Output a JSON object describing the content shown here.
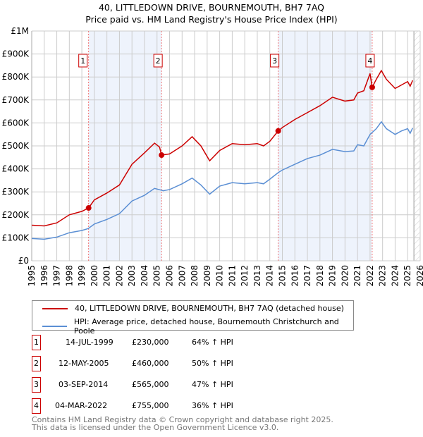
{
  "chart_data": {
    "type": "line",
    "title": "40, LITTLEDOWN DRIVE, BOURNEMOUTH, BH7 7AQ",
    "subtitle": "Price paid vs. HM Land Registry's House Price Index (HPI)",
    "xlim": [
      1995,
      2026
    ],
    "ylim": [
      0,
      1000000
    ],
    "grid": true,
    "y_ticks": [
      {
        "v": 0,
        "l": "£0"
      },
      {
        "v": 100000,
        "l": "£100K"
      },
      {
        "v": 200000,
        "l": "£200K"
      },
      {
        "v": 300000,
        "l": "£300K"
      },
      {
        "v": 400000,
        "l": "£400K"
      },
      {
        "v": 500000,
        "l": "£500K"
      },
      {
        "v": 600000,
        "l": "£600K"
      },
      {
        "v": 700000,
        "l": "£700K"
      },
      {
        "v": 800000,
        "l": "£800K"
      },
      {
        "v": 900000,
        "l": "£900K"
      },
      {
        "v": 1000000,
        "l": "£1M"
      }
    ],
    "x_ticks": [
      "1995",
      "1996",
      "1997",
      "1998",
      "1999",
      "2000",
      "2001",
      "2002",
      "2003",
      "2004",
      "2005",
      "2006",
      "2007",
      "2008",
      "2009",
      "2010",
      "2011",
      "2012",
      "2013",
      "2014",
      "2015",
      "2016",
      "2017",
      "2018",
      "2019",
      "2020",
      "2021",
      "2022",
      "2023",
      "2024",
      "2025",
      "2026"
    ],
    "shaded_periods": [
      [
        1999.54,
        2005.36
      ],
      [
        2014.67,
        2022.17
      ]
    ],
    "forecast_start": 2025.5,
    "series": [
      {
        "name": "40, LITTLEDOWN DRIVE, BOURNEMOUTH, BH7 7AQ (detached house)",
        "color": "#cc0000",
        "x": [
          1995,
          1996,
          1997,
          1998,
          1999,
          1999.54,
          2000,
          2001,
          2002,
          2003,
          2004,
          2004.8,
          2005.2,
          2005.36,
          2006,
          2007,
          2007.8,
          2008.5,
          2009.2,
          2010,
          2011,
          2012,
          2013,
          2013.5,
          2014,
          2014.67,
          2015,
          2016,
          2017,
          2018,
          2019,
          2020,
          2020.7,
          2021,
          2021.5,
          2022,
          2022.17,
          2022.5,
          2022.9,
          2023.3,
          2024,
          2024.5,
          2025,
          2025.2,
          2025.4
        ],
        "y": [
          155000,
          152000,
          165000,
          200000,
          215000,
          230000,
          265000,
          295000,
          330000,
          420000,
          470000,
          512000,
          495000,
          460000,
          465000,
          500000,
          540000,
          500000,
          435000,
          480000,
          510000,
          505000,
          510000,
          500000,
          520000,
          565000,
          580000,
          615000,
          645000,
          675000,
          712000,
          695000,
          700000,
          730000,
          740000,
          815000,
          755000,
          790000,
          828000,
          790000,
          750000,
          765000,
          780000,
          760000,
          785000
        ]
      },
      {
        "name": "HPI: Average price, detached house, Bournemouth Christchurch and Poole",
        "color": "#5b8fd4",
        "x": [
          1995,
          1996,
          1997,
          1998,
          1999,
          1999.5,
          2000,
          2001,
          2002,
          2003,
          2004,
          2004.8,
          2005.5,
          2006,
          2007,
          2007.8,
          2008.5,
          2009.2,
          2010,
          2011,
          2012,
          2013,
          2013.5,
          2014,
          2014.7,
          2015,
          2016,
          2017,
          2018,
          2019,
          2020,
          2020.7,
          2021,
          2021.5,
          2022,
          2022.5,
          2022.9,
          2023.3,
          2024,
          2024.5,
          2025,
          2025.2,
          2025.4
        ],
        "y": [
          97000,
          94000,
          103000,
          122000,
          132000,
          140000,
          160000,
          180000,
          205000,
          260000,
          285000,
          315000,
          305000,
          310000,
          335000,
          360000,
          330000,
          290000,
          325000,
          340000,
          335000,
          340000,
          335000,
          355000,
          385000,
          395000,
          420000,
          445000,
          460000,
          485000,
          475000,
          478000,
          505000,
          500000,
          550000,
          575000,
          605000,
          575000,
          550000,
          565000,
          575000,
          555000,
          578000
        ]
      }
    ],
    "sales": [
      {
        "n": "1",
        "x": 1999.54,
        "y": 230000,
        "date": "14-JUL-1999",
        "price": "£230,000",
        "hpi": "64% ↑ HPI"
      },
      {
        "n": "2",
        "x": 2005.36,
        "y": 460000,
        "date": "12-MAY-2005",
        "price": "£460,000",
        "hpi": "50% ↑ HPI"
      },
      {
        "n": "3",
        "x": 2014.67,
        "y": 565000,
        "date": "03-SEP-2014",
        "price": "£565,000",
        "hpi": "47% ↑ HPI"
      },
      {
        "n": "4",
        "x": 2022.17,
        "y": 755000,
        "date": "04-MAR-2022",
        "price": "£755,000",
        "hpi": "36% ↑ HPI"
      }
    ]
  },
  "footer": {
    "line1": "Contains HM Land Registry data © Crown copyright and database right 2025.",
    "line2": "This data is licensed under the Open Government Licence v3.0."
  }
}
